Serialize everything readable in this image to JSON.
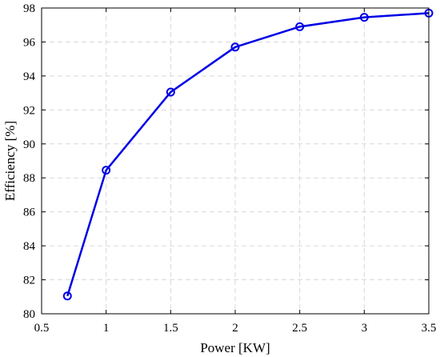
{
  "chart_data": {
    "type": "line",
    "title": "",
    "xlabel": "Power [KW]",
    "ylabel": "Efficiency [%]",
    "xlim": [
      0.5,
      3.5
    ],
    "ylim": [
      80,
      98
    ],
    "xticks": [
      0.5,
      1,
      1.5,
      2,
      2.5,
      3,
      3.5
    ],
    "yticks": [
      80,
      82,
      84,
      86,
      88,
      90,
      92,
      94,
      96,
      98
    ],
    "xtick_labels": [
      "0.5",
      "1",
      "1.5",
      "2",
      "2.5",
      "3",
      "3.5"
    ],
    "ytick_labels": [
      "80",
      "82",
      "84",
      "86",
      "88",
      "90",
      "92",
      "94",
      "96",
      "98"
    ],
    "grid": true,
    "series": [
      {
        "color": "#0000e6",
        "marker": "circle",
        "x": [
          0.7,
          1.0,
          1.5,
          2.0,
          2.5,
          3.0,
          3.5
        ],
        "y": [
          81.05,
          88.45,
          93.05,
          95.7,
          96.9,
          97.45,
          97.7
        ]
      }
    ]
  }
}
